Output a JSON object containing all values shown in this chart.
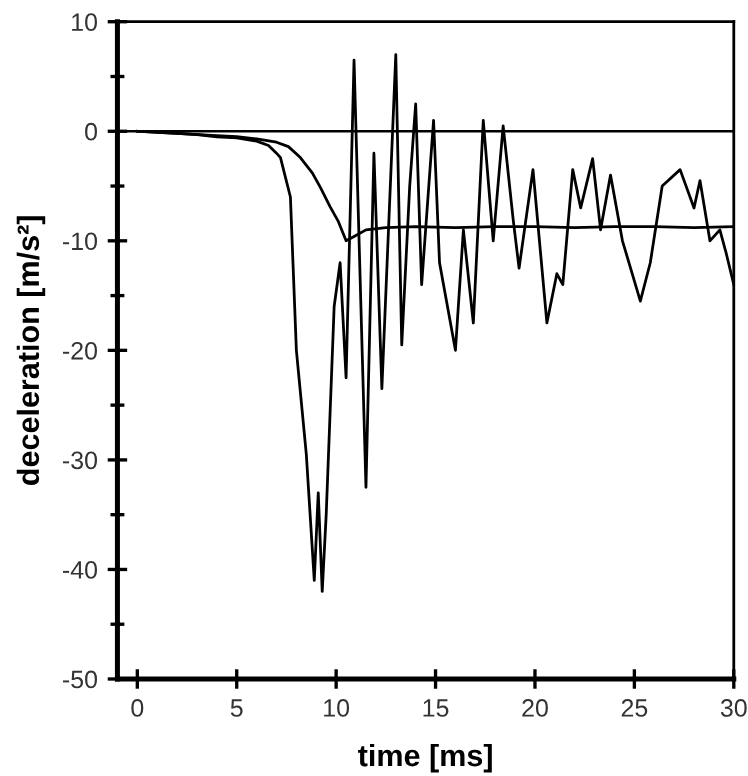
{
  "chart_data": {
    "type": "line",
    "xlabel": "time [ms]",
    "ylabel": "deceleration [m/s²]",
    "xlim": [
      -1,
      30
    ],
    "ylim": [
      -50,
      10
    ],
    "xticks": [
      0,
      5,
      10,
      15,
      20,
      25,
      30
    ],
    "yticks": [
      -50,
      {
        "value": -45,
        "label": null
      },
      -40,
      {
        "value": -35,
        "label": null
      },
      -30,
      {
        "value": -25,
        "label": null
      },
      -20,
      {
        "value": -15,
        "label": null
      },
      -10,
      {
        "value": -5,
        "label": null
      },
      0,
      {
        "value": 5,
        "label": null
      },
      10
    ],
    "ref_lines": [
      {
        "axis": "y",
        "value": 0,
        "color": "#000000",
        "line_style": "solid"
      }
    ],
    "grid": false,
    "legend": false,
    "marker": "none",
    "line_style": "solid",
    "series": [
      {
        "color": "#000000",
        "x": [
          0,
          1,
          2,
          3,
          4,
          5,
          6,
          6.6,
          7.0,
          7.2,
          7.7,
          8.0,
          8.5,
          8.9,
          9.1,
          9.3,
          9.5,
          9.9,
          10.2,
          10.5,
          10.9,
          11.5,
          11.9,
          12.3,
          13.0,
          13.3,
          13.7,
          14.0,
          14.3,
          14.9,
          15.2,
          16.0,
          16.4,
          16.9,
          17.4,
          17.9,
          18.4,
          18.9,
          19.2,
          19.9,
          20.6,
          21.1,
          21.4,
          21.9,
          22.3,
          22.9,
          23.3,
          23.8,
          24.4,
          25.3,
          25.8,
          26.4,
          27.3,
          28.0,
          28.3,
          28.8,
          29.3,
          29.6,
          30.0
        ],
        "values": [
          0,
          -0.1,
          -0.2,
          -0.3,
          -0.5,
          -0.6,
          -0.9,
          -1.3,
          -2.0,
          -2.4,
          -6,
          -20,
          -29.5,
          -41,
          -33,
          -42,
          -35,
          -16,
          -12,
          -22.5,
          6.5,
          -32.5,
          -2,
          -23.5,
          7,
          -19.5,
          -5,
          2.5,
          -14,
          1,
          -12,
          -20,
          -9,
          -17.5,
          1,
          -10,
          0.5,
          -8,
          -12.5,
          -3.5,
          -17.5,
          -13,
          -14,
          -3.5,
          -7,
          -2.5,
          -9,
          -4,
          -10,
          -15.5,
          -12,
          -5,
          -3.5,
          -7,
          -4.5,
          -10,
          -9,
          -11,
          -14
        ]
      },
      {
        "color": "#000000",
        "x": [
          0,
          2,
          4,
          5,
          6,
          7.0,
          7.6,
          8.2,
          8.8,
          9.2,
          9.7,
          10.1,
          10.5,
          10.9,
          11.5,
          12.5,
          14,
          16,
          18,
          20,
          22,
          24,
          26,
          28,
          30
        ],
        "values": [
          0,
          -0.2,
          -0.4,
          -0.5,
          -0.7,
          -1.0,
          -1.4,
          -2.4,
          -3.8,
          -5.1,
          -6.9,
          -8.2,
          -10,
          -9.6,
          -9,
          -8.8,
          -8.7,
          -8.8,
          -8.7,
          -8.7,
          -8.8,
          -8.7,
          -8.7,
          -8.8,
          -8.7
        ]
      }
    ]
  }
}
